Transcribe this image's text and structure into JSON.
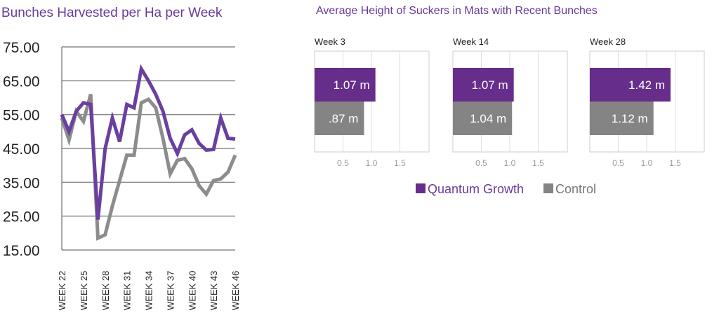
{
  "chart_data": [
    {
      "type": "line",
      "title": "Bunches Harvested per Ha per Week",
      "xlabel": "",
      "ylabel": "",
      "ylim": [
        15,
        75
      ],
      "yticks": [
        "75.00",
        "65.00",
        "55.00",
        "45.00",
        "35.00",
        "25.00",
        "15.00"
      ],
      "ytick_values": [
        75,
        65,
        55,
        45,
        35,
        25,
        15
      ],
      "x": [
        "WEEK 22",
        "WEEK 23",
        "WEEK 24",
        "WEEK 25",
        "WEEK 26",
        "WEEK 27",
        "WEEK 28",
        "WEEK 29",
        "WEEK 30",
        "WEEK 31",
        "WEEK 32",
        "WEEK 33",
        "WEEK 34",
        "WEEK 35",
        "WEEK 36",
        "WEEK 37",
        "WEEK 38",
        "WEEK 39",
        "WEEK 40",
        "WEEK 41",
        "WEEK 42",
        "WEEK 43",
        "WEEK 44",
        "WEEK 45",
        "WEEK 46"
      ],
      "xtick_labels": [
        "WEEK 22",
        "WEEK 25",
        "WEEK 28",
        "WEEK 31",
        "WEEK 34",
        "WEEK 37",
        "WEEK 40",
        "WEEK 43",
        "WEEK 46"
      ],
      "grid": true,
      "series": [
        {
          "name": "Quantum Growth",
          "color": "#6b3fa0",
          "values": [
            55,
            50,
            56,
            58.5,
            58,
            24,
            45,
            54,
            47,
            58,
            57,
            68.5,
            65,
            61,
            56,
            48,
            43.5,
            49,
            50.5,
            46.5,
            44.5,
            44.7,
            54,
            48,
            47.8
          ]
        },
        {
          "name": "Control",
          "color": "#8c8c8c",
          "values": [
            54,
            47.5,
            56,
            53,
            61,
            18.5,
            19.5,
            28,
            35.5,
            43,
            43,
            58.5,
            59.5,
            57,
            48,
            37.5,
            41.5,
            42,
            39,
            34,
            31.5,
            35.5,
            36,
            38,
            43
          ]
        }
      ]
    },
    {
      "type": "bar",
      "title": "Average Height of Suckers in Mats with Recent Bunches",
      "orientation": "horizontal",
      "xlim": [
        0,
        2
      ],
      "xticks": [
        "0.5",
        "1.0",
        "1.5"
      ],
      "xtick_values": [
        0.5,
        1.0,
        1.5
      ],
      "legend": "bottom",
      "panels": [
        {
          "title": "Week 3",
          "values": [
            1.07,
            0.87
          ],
          "labels": [
            "1.07 m",
            ".87 m"
          ]
        },
        {
          "title": "Week 14",
          "values": [
            1.07,
            1.04
          ],
          "labels": [
            "1.07 m",
            "1.04 m"
          ]
        },
        {
          "title": "Week 28",
          "values": [
            1.42,
            1.12
          ],
          "labels": [
            "1.42 m",
            "1.12 m"
          ]
        }
      ],
      "series": [
        {
          "name": "Quantum Growth",
          "color": "#672d8a"
        },
        {
          "name": "Control",
          "color": "#848484"
        }
      ]
    }
  ]
}
